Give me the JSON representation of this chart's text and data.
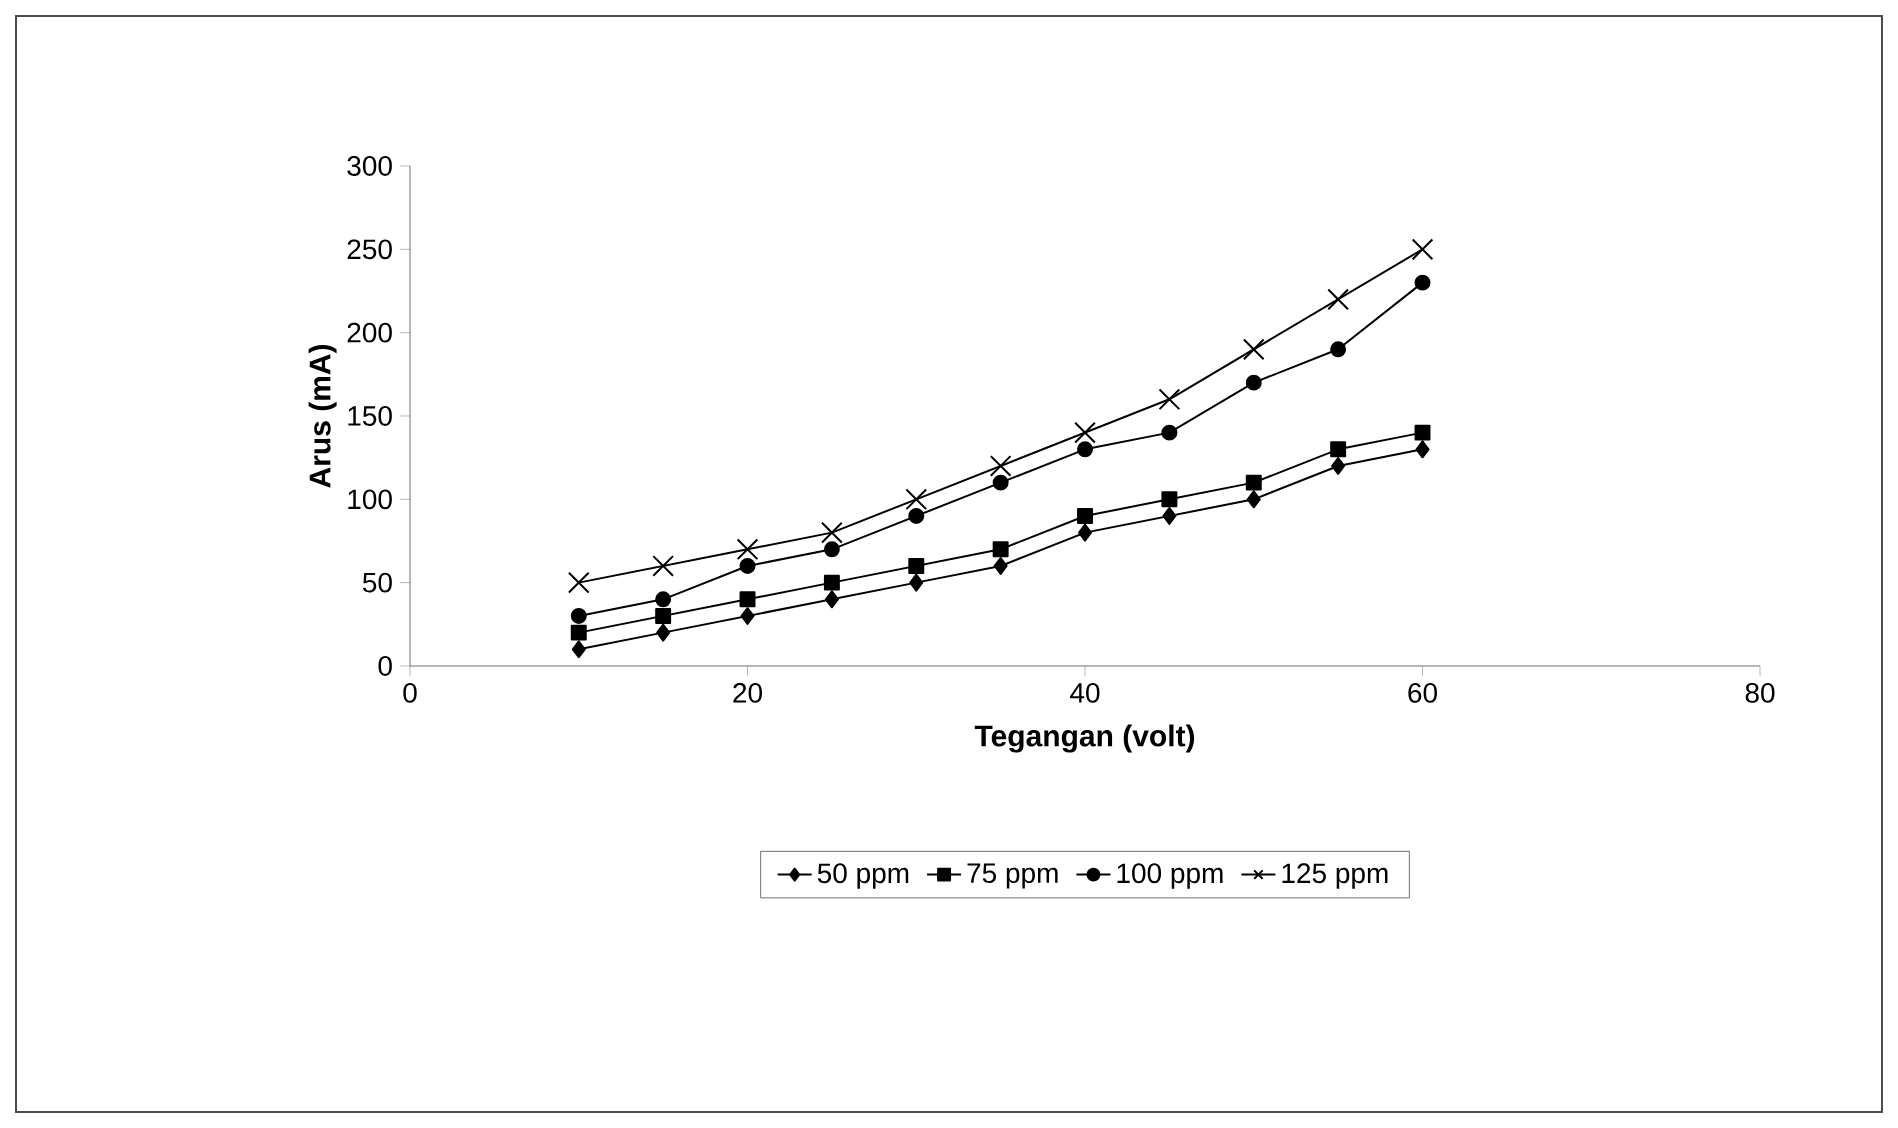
{
  "chart_data": {
    "type": "line",
    "xlabel": "Tegangan (volt)",
    "ylabel": "Arus (mA)",
    "x": [
      10,
      15,
      20,
      25,
      30,
      35,
      40,
      45,
      50,
      55,
      60
    ],
    "series": [
      {
        "name": "50 ppm",
        "color": "#000000",
        "marker": "diamond",
        "values": [
          10,
          20,
          30,
          40,
          50,
          60,
          80,
          90,
          100,
          120,
          130
        ]
      },
      {
        "name": "75 ppm",
        "color": "#000000",
        "marker": "square",
        "values": [
          20,
          30,
          40,
          50,
          60,
          70,
          90,
          100,
          110,
          130,
          140
        ]
      },
      {
        "name": "100 ppm",
        "color": "#000000",
        "marker": "circle",
        "values": [
          30,
          40,
          60,
          70,
          90,
          110,
          130,
          140,
          170,
          190,
          230
        ]
      },
      {
        "name": "125 ppm",
        "color": "#000000",
        "marker": "cross",
        "values": [
          50,
          60,
          70,
          80,
          100,
          120,
          140,
          160,
          190,
          220,
          250
        ]
      }
    ],
    "xlim": [
      0,
      80
    ],
    "xticks": [
      0,
      20,
      40,
      60,
      80
    ],
    "ylim": [
      0,
      300
    ],
    "yticks": [
      0,
      50,
      100,
      150,
      200,
      250,
      300
    ],
    "grid": false,
    "legend": "bottom",
    "line_style": "solid"
  }
}
